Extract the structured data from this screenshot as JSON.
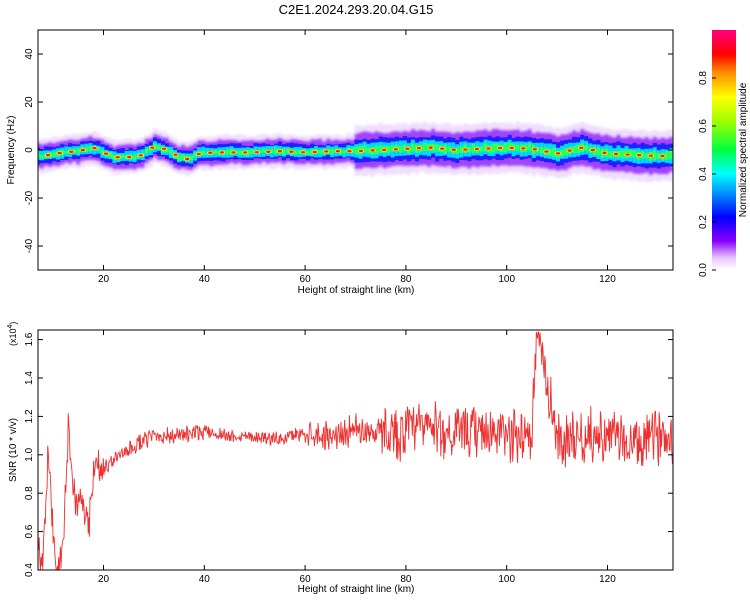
{
  "figure": {
    "title": "C2E1.2024.293.20.04.G15"
  },
  "chart_data": [
    {
      "type": "heatmap",
      "xlabel": "Height of straight line (km)",
      "ylabel": "Frequency (Hz)",
      "xlim": [
        7,
        133
      ],
      "ylim": [
        -50,
        50
      ],
      "xticks": [
        "20",
        "40",
        "60",
        "80",
        "100",
        "120"
      ],
      "yticks": [
        "-40",
        "-20",
        "0",
        "20",
        "40"
      ],
      "colorbar": {
        "label": "Normalized spectral amplitude",
        "ticks": [
          "0.0",
          "0.2",
          "0.4",
          "0.6",
          "0.8"
        ],
        "range": [
          0,
          1
        ]
      },
      "ridge": {
        "x": [
          8,
          12,
          15,
          18,
          20,
          22,
          25,
          28,
          30,
          33,
          35,
          37,
          39,
          42,
          45,
          50,
          55,
          60,
          65,
          70,
          75,
          80,
          85,
          90,
          95,
          100,
          105,
          110,
          115,
          120,
          125,
          130,
          133
        ],
        "freq": [
          -2.5,
          -1,
          -0.5,
          1,
          -1,
          -3,
          -3,
          -2,
          1.5,
          0,
          -3,
          -4,
          -1.5,
          -1,
          -1,
          -1,
          -0.5,
          -1,
          -0.5,
          -0.5,
          0,
          0.5,
          1,
          0,
          0.5,
          1,
          0.5,
          -1.5,
          1,
          -1.5,
          -2,
          -2.5,
          -2.5
        ]
      }
    },
    {
      "type": "line",
      "xlabel": "Height of straight line (km)",
      "ylabel": "SNR (10 * v/v)",
      "y_multiplier": "(x10",
      "y_multiplier_exp": "4",
      "xlim": [
        7,
        133
      ],
      "ylim": [
        0.4,
        1.65
      ],
      "xticks": [
        "20",
        "40",
        "60",
        "80",
        "100",
        "120"
      ],
      "yticks": [
        "0.4",
        "0.6",
        "0.8",
        "1.0",
        "1.2",
        "1.4",
        "1.6"
      ],
      "series": [
        {
          "color": "#ee3030",
          "x": [
            7,
            8,
            9,
            10,
            11,
            12,
            13,
            14,
            15,
            16,
            17,
            18,
            19,
            20,
            22,
            24,
            26,
            28,
            30,
            35,
            40,
            45,
            50,
            55,
            60,
            65,
            70,
            75,
            80,
            85,
            90,
            95,
            100,
            105,
            106,
            110,
            115,
            120,
            125,
            130,
            133
          ],
          "y": [
            0.55,
            0.45,
            1.0,
            0.6,
            0.38,
            0.5,
            1.15,
            0.85,
            0.7,
            0.75,
            0.6,
            0.9,
            0.95,
            0.92,
            0.98,
            1.0,
            1.05,
            1.07,
            1.1,
            1.1,
            1.12,
            1.1,
            1.1,
            1.08,
            1.12,
            1.1,
            1.13,
            1.12,
            1.12,
            1.15,
            1.1,
            1.12,
            1.1,
            1.12,
            1.65,
            1.08,
            1.1,
            1.1,
            1.05,
            1.1,
            1.1
          ]
        }
      ]
    }
  ]
}
